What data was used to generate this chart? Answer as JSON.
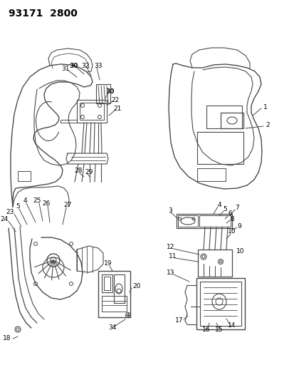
{
  "title": "93171  2800",
  "title_fontsize": 10,
  "bg_color": "#ffffff",
  "line_color": "#4a4a4a",
  "label_color": "#000000",
  "label_fontsize": 6.5,
  "figsize": [
    4.14,
    5.33
  ],
  "dpi": 100,
  "fig_w": 414,
  "fig_h": 533
}
